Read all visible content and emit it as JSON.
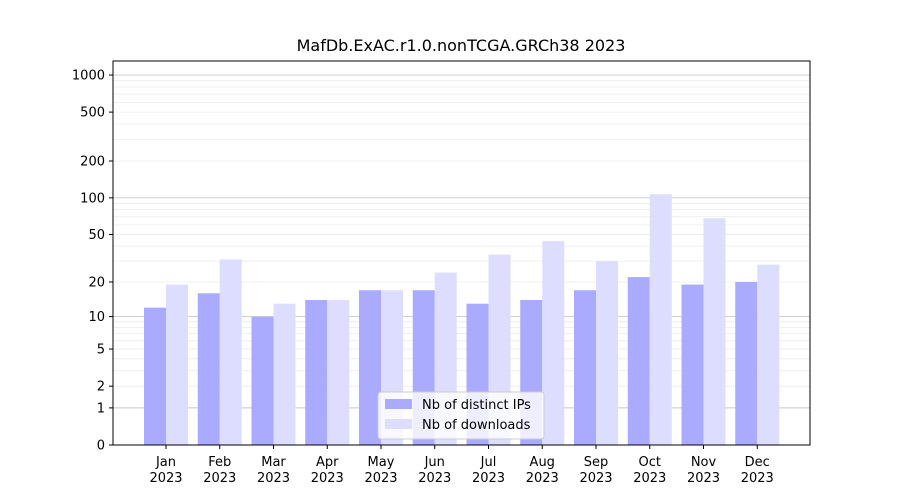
{
  "chart_data": {
    "type": "bar",
    "title": "MafDb.ExAC.r1.0.nonTCGA.GRCh38 2023",
    "xlabel": "",
    "ylabel": "",
    "y_scale": "symlog",
    "ylim": [
      0,
      1300
    ],
    "y_ticks": [
      0,
      1,
      2,
      5,
      10,
      20,
      50,
      100,
      200,
      500,
      1000
    ],
    "y_tick_labels": [
      "0",
      "1",
      "2",
      "5",
      "10",
      "20",
      "50",
      "100",
      "200",
      "500",
      "1000"
    ],
    "categories": [
      "Jan",
      "Feb",
      "Mar",
      "Apr",
      "May",
      "Jun",
      "Jul",
      "Aug",
      "Sep",
      "Oct",
      "Nov",
      "Dec"
    ],
    "category_year": "2023",
    "series": [
      {
        "name": "Nb of distinct IPs",
        "color": "#aaaaff",
        "values": [
          12,
          16,
          10,
          14,
          17,
          17,
          13,
          14,
          17,
          22,
          19,
          20
        ]
      },
      {
        "name": "Nb of downloads",
        "color": "#ddddff",
        "values": [
          19,
          31,
          13,
          14,
          17,
          24,
          34,
          44,
          30,
          107,
          68,
          28
        ]
      }
    ],
    "grid": true,
    "legend_position": "bottom-center"
  }
}
